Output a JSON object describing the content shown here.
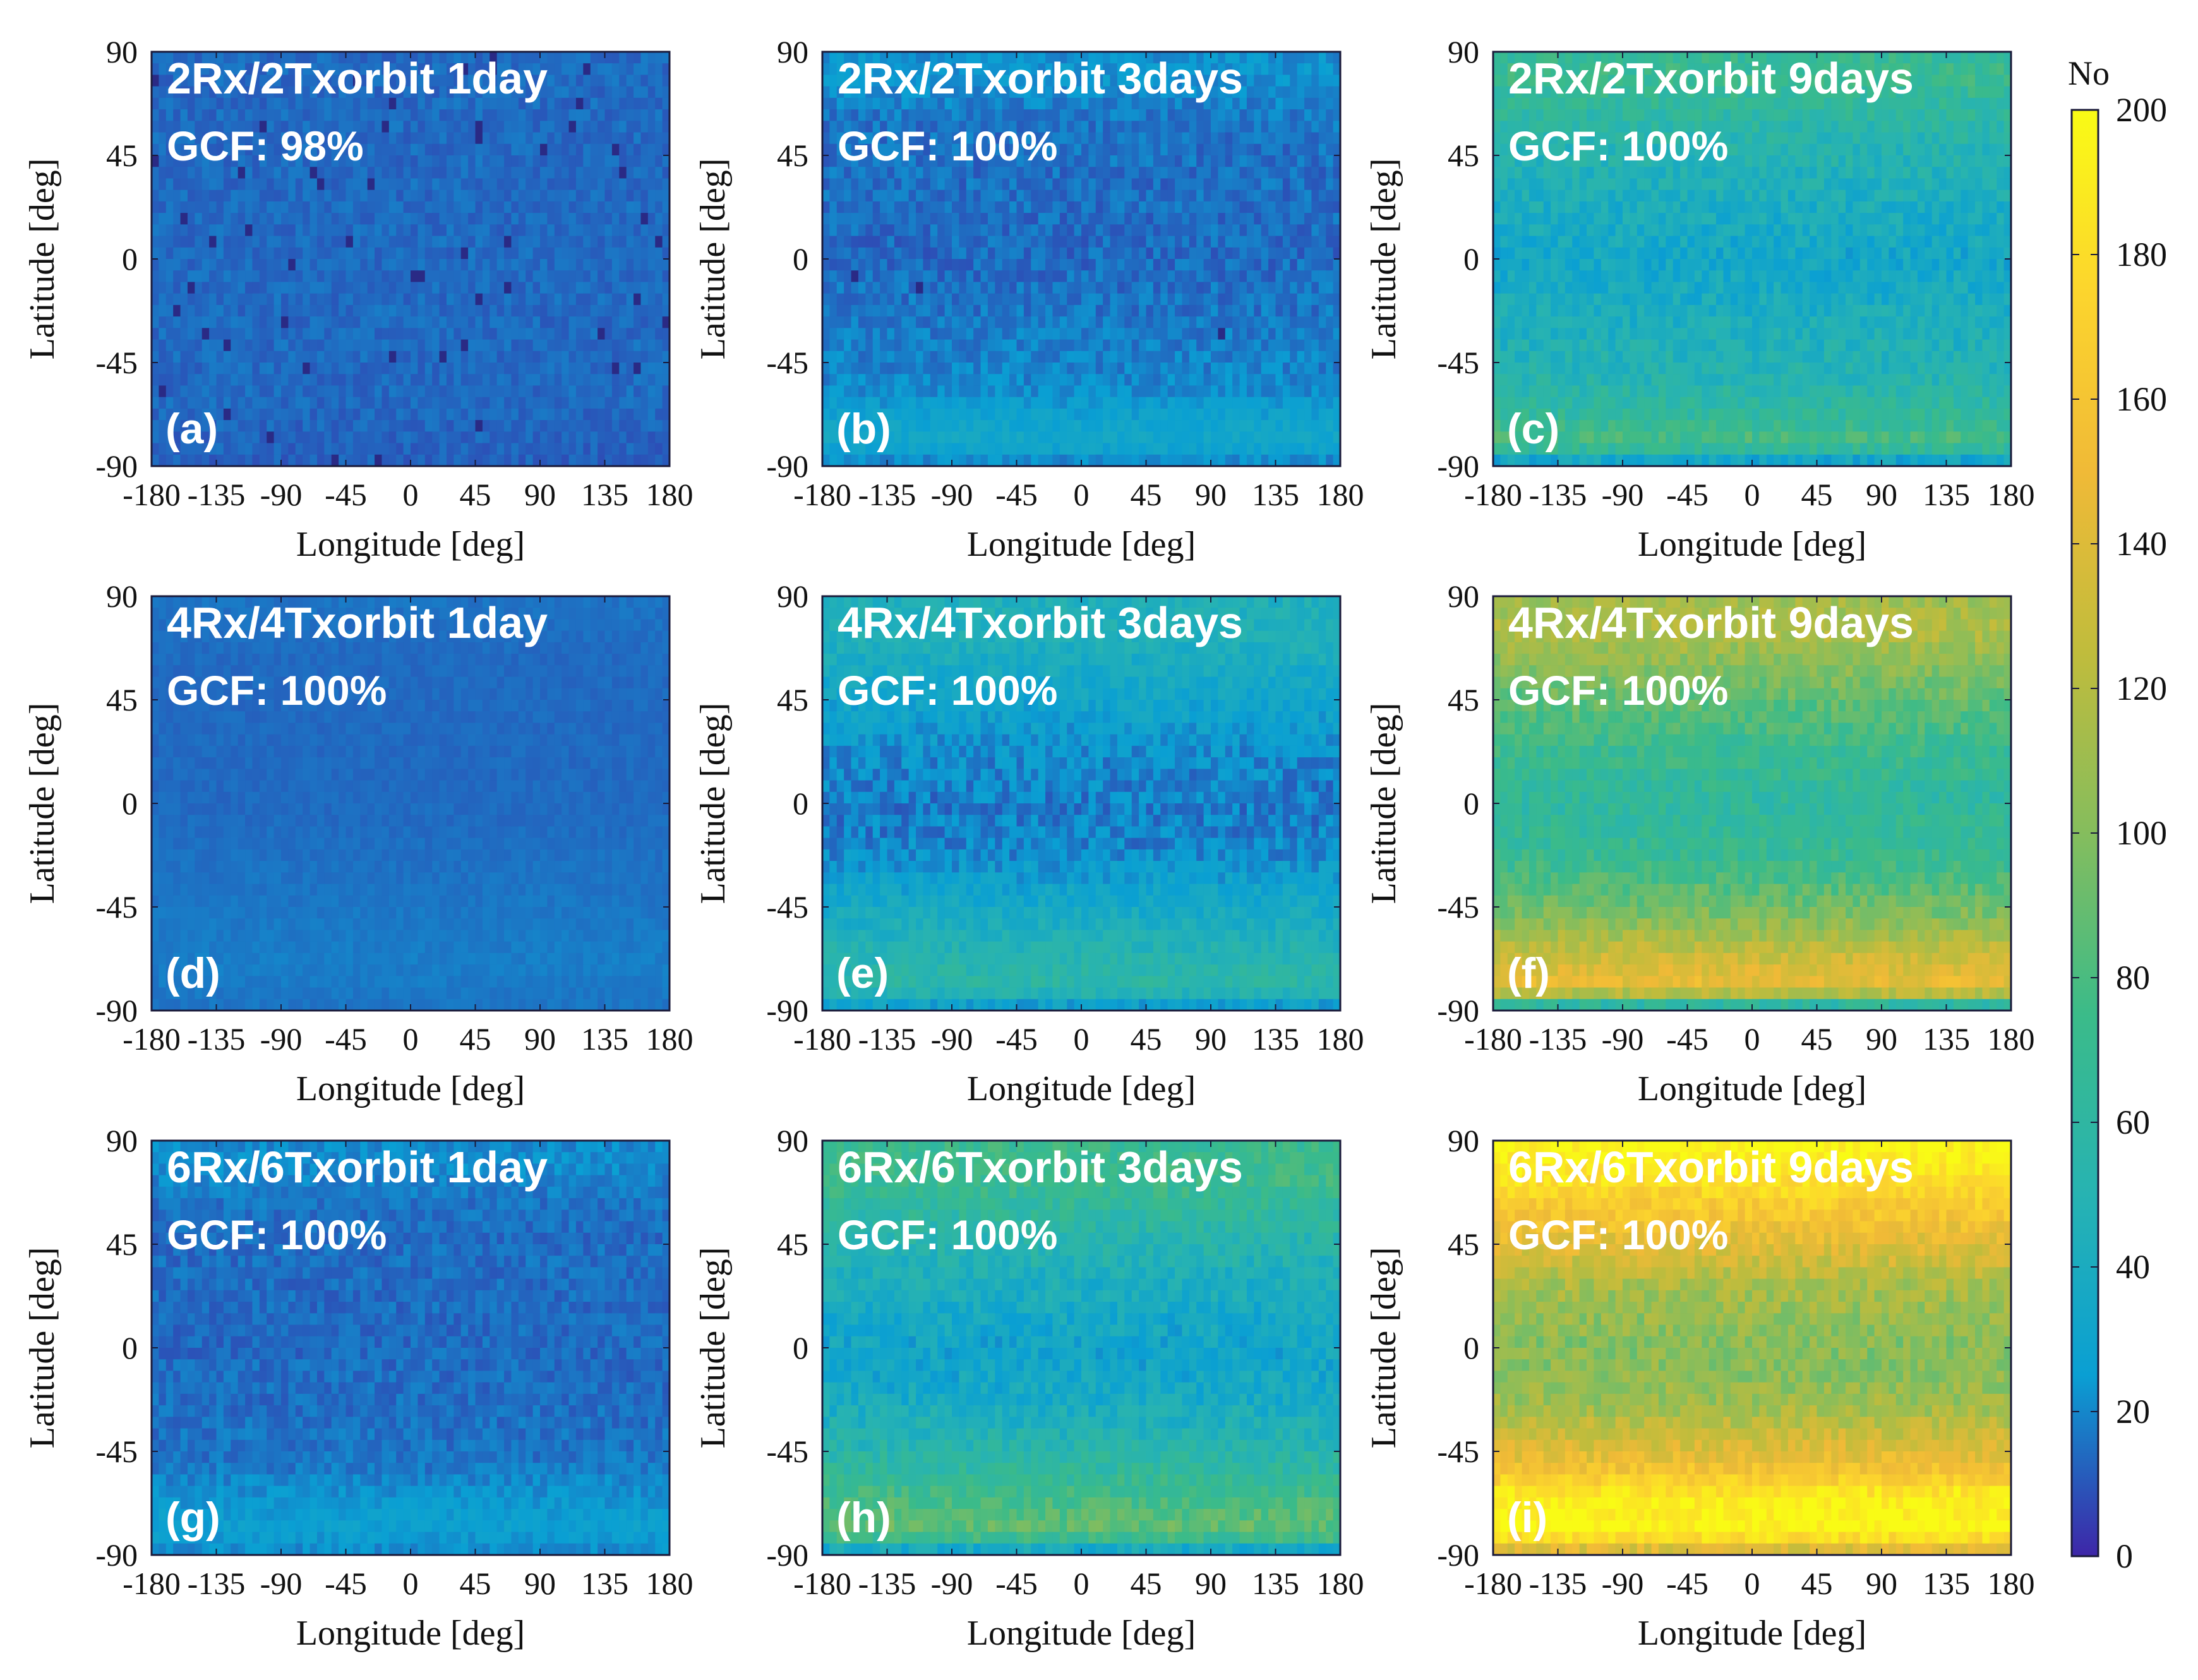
{
  "figure": {
    "colormap": [
      "#3e26a8",
      "#0a9fd3",
      "#27b3b2",
      "#3bbb89",
      "#85bd5d",
      "#c0bc3c",
      "#f0ba37",
      "#fcd52d",
      "#f9fb15"
    ],
    "empty_color": "#2a2a85",
    "frame_color": "#1a1a3a"
  },
  "chart_data": {
    "type": "heatmap",
    "xlabel": "Longitude [deg]",
    "ylabel": "Latitude [deg]",
    "xticks": [
      "-180",
      "-135",
      "-90",
      "-45",
      "0",
      "45",
      "90",
      "135",
      "180"
    ],
    "yticks": [
      "90",
      "45",
      "0",
      "-45",
      "-90"
    ],
    "xlim": [
      -180,
      180
    ],
    "ylim": [
      -90,
      90
    ],
    "colorbar": {
      "label": "No",
      "range": [
        0,
        200
      ],
      "ticks": [
        "200",
        "180",
        "160",
        "140",
        "120",
        "100",
        "80",
        "60",
        "40",
        "20",
        "0"
      ]
    },
    "panels": [
      {
        "id": "a",
        "letter": "(a)",
        "title": "2Rx/2Txorbit 1day",
        "gcf": "GCF: 98%",
        "profile": [
          [
            -90,
            12
          ],
          [
            -60,
            14
          ],
          [
            0,
            14
          ],
          [
            60,
            14
          ],
          [
            90,
            14
          ]
        ],
        "noise": 4,
        "empty_fraction": 0.02
      },
      {
        "id": "b",
        "letter": "(b)",
        "title": "2Rx/2Txorbit 3days",
        "gcf": "GCF: 100%",
        "profile": [
          [
            -90,
            18
          ],
          [
            -80,
            34
          ],
          [
            -70,
            30
          ],
          [
            -55,
            20
          ],
          [
            0,
            14
          ],
          [
            60,
            16
          ],
          [
            80,
            24
          ],
          [
            90,
            22
          ]
        ],
        "noise": 6,
        "empty_fraction": 0.002
      },
      {
        "id": "c",
        "letter": "(c)",
        "title": "2Rx/2Txorbit 9days",
        "gcf": "GCF: 100%",
        "profile": [
          [
            -90,
            20
          ],
          [
            -80,
            80
          ],
          [
            -70,
            66
          ],
          [
            -50,
            50
          ],
          [
            -20,
            40
          ],
          [
            0,
            34
          ],
          [
            20,
            40
          ],
          [
            50,
            52
          ],
          [
            80,
            72
          ],
          [
            90,
            66
          ]
        ],
        "noise": 12,
        "empty_fraction": 0
      },
      {
        "id": "d",
        "letter": "(d)",
        "title": "4Rx/4Txorbit 1day",
        "gcf": "GCF: 100%",
        "profile": [
          [
            -90,
            16
          ],
          [
            -70,
            18
          ],
          [
            0,
            14
          ],
          [
            60,
            14
          ],
          [
            90,
            16
          ]
        ],
        "noise": 2,
        "empty_fraction": 0
      },
      {
        "id": "e",
        "letter": "(e)",
        "title": "4Rx/4Txorbit 3days",
        "gcf": "GCF: 100%",
        "profile": [
          [
            -90,
            20
          ],
          [
            -80,
            58
          ],
          [
            -65,
            50
          ],
          [
            -45,
            36
          ],
          [
            -20,
            20
          ],
          [
            0,
            18
          ],
          [
            20,
            22
          ],
          [
            45,
            32
          ],
          [
            75,
            46
          ],
          [
            90,
            44
          ]
        ],
        "noise": 9,
        "empty_fraction": 0
      },
      {
        "id": "f",
        "letter": "(f)",
        "title": "4Rx/4Txorbit 9days",
        "gcf": "GCF: 100%",
        "profile": [
          [
            -90,
            30
          ],
          [
            -80,
            150
          ],
          [
            -65,
            128
          ],
          [
            -50,
            100
          ],
          [
            -25,
            70
          ],
          [
            0,
            62
          ],
          [
            25,
            72
          ],
          [
            50,
            92
          ],
          [
            75,
            118
          ],
          [
            90,
            110
          ]
        ],
        "noise": 12,
        "empty_fraction": 0
      },
      {
        "id": "g",
        "letter": "(g)",
        "title": "6Rx/6Txorbit 1day",
        "gcf": "GCF: 100%",
        "profile": [
          [
            -90,
            20
          ],
          [
            -78,
            28
          ],
          [
            -62,
            22
          ],
          [
            -50,
            16
          ],
          [
            0,
            14
          ],
          [
            60,
            15
          ],
          [
            80,
            22
          ],
          [
            90,
            20
          ]
        ],
        "noise": 5,
        "empty_fraction": 0
      },
      {
        "id": "h",
        "letter": "(h)",
        "title": "6Rx/6Txorbit 3days",
        "gcf": "GCF: 100%",
        "profile": [
          [
            -90,
            20
          ],
          [
            -80,
            90
          ],
          [
            -65,
            76
          ],
          [
            -45,
            54
          ],
          [
            -20,
            36
          ],
          [
            0,
            32
          ],
          [
            20,
            38
          ],
          [
            45,
            52
          ],
          [
            75,
            74
          ],
          [
            90,
            70
          ]
        ],
        "noise": 12,
        "empty_fraction": 0
      },
      {
        "id": "i",
        "letter": "(i)",
        "title": "6Rx/6Txorbit 9days",
        "gcf": "GCF: 100%",
        "profile": [
          [
            -90,
            120
          ],
          [
            -80,
            200
          ],
          [
            -65,
            192
          ],
          [
            -50,
            150
          ],
          [
            -25,
            110
          ],
          [
            0,
            100
          ],
          [
            25,
            112
          ],
          [
            50,
            150
          ],
          [
            75,
            185
          ],
          [
            90,
            200
          ]
        ],
        "noise": 14,
        "empty_fraction": 0
      }
    ]
  }
}
